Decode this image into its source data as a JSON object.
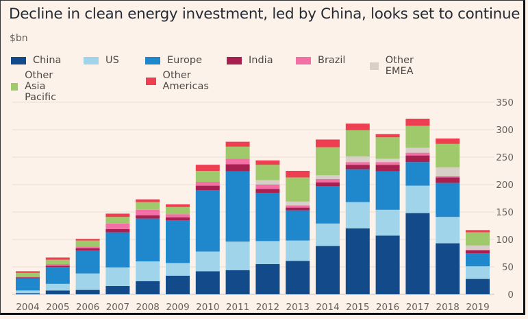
{
  "chart_data": {
    "type": "bar",
    "stacked": true,
    "title": "Decline in clean energy investment, led by China, looks set to continue",
    "ylabel": "$bn",
    "xlabel": "",
    "ylim": [
      0,
      350
    ],
    "yticks": [
      0,
      50,
      100,
      150,
      200,
      250,
      300,
      350
    ],
    "grid": true,
    "legend_position": "top-left",
    "categories": [
      "2004",
      "2005",
      "2006",
      "2007",
      "2008",
      "2009",
      "2010",
      "2011",
      "2012",
      "2013",
      "2014",
      "2015",
      "2016",
      "2017",
      "2018",
      "2019"
    ],
    "series": [
      {
        "name": "China",
        "color": "#124a8a",
        "values": [
          2,
          7,
          8,
          15,
          24,
          34,
          42,
          44,
          55,
          61,
          88,
          120,
          107,
          148,
          93,
          28
        ]
      },
      {
        "name": "US",
        "color": "#9fd4ea",
        "values": [
          5,
          12,
          30,
          34,
          36,
          23,
          36,
          52,
          42,
          37,
          41,
          48,
          47,
          50,
          48,
          23
        ]
      },
      {
        "name": "Europe",
        "color": "#1f87cc",
        "values": [
          22,
          31,
          42,
          64,
          78,
          78,
          112,
          128,
          88,
          55,
          68,
          60,
          70,
          43,
          62,
          24
        ]
      },
      {
        "name": "India",
        "color": "#a8204f",
        "values": [
          2,
          2,
          4,
          6,
          6,
          5,
          8,
          13,
          7,
          5,
          7,
          8,
          12,
          12,
          10,
          5
        ]
      },
      {
        "name": "Brazil",
        "color": "#f270a6",
        "values": [
          1,
          3,
          3,
          10,
          10,
          6,
          7,
          10,
          8,
          4,
          6,
          5,
          5,
          5,
          2,
          1
        ]
      },
      {
        "name": "Other EMEA",
        "color": "#d8cfc8",
        "values": [
          0,
          0,
          0,
          0,
          0,
          0,
          0,
          0,
          8,
          7,
          7,
          10,
          6,
          9,
          16,
          8
        ]
      },
      {
        "name": "Other Asia Pacific",
        "color": "#9fc96a",
        "values": [
          7,
          8,
          11,
          12,
          14,
          13,
          20,
          22,
          28,
          44,
          51,
          48,
          39,
          40,
          43,
          24
        ]
      },
      {
        "name": "Other Americas",
        "color": "#ee3e52",
        "values": [
          3,
          4,
          3,
          6,
          5,
          5,
          11,
          9,
          8,
          12,
          14,
          12,
          6,
          13,
          10,
          4
        ]
      }
    ]
  },
  "legend_rows": [
    [
      0,
      1,
      2,
      3,
      4,
      5
    ],
    [
      6,
      7
    ]
  ],
  "colors": {
    "background": "#fdf2e9",
    "gridline": "#e8ddd3",
    "axis": "#c9c0b8",
    "text": "#66605c"
  }
}
